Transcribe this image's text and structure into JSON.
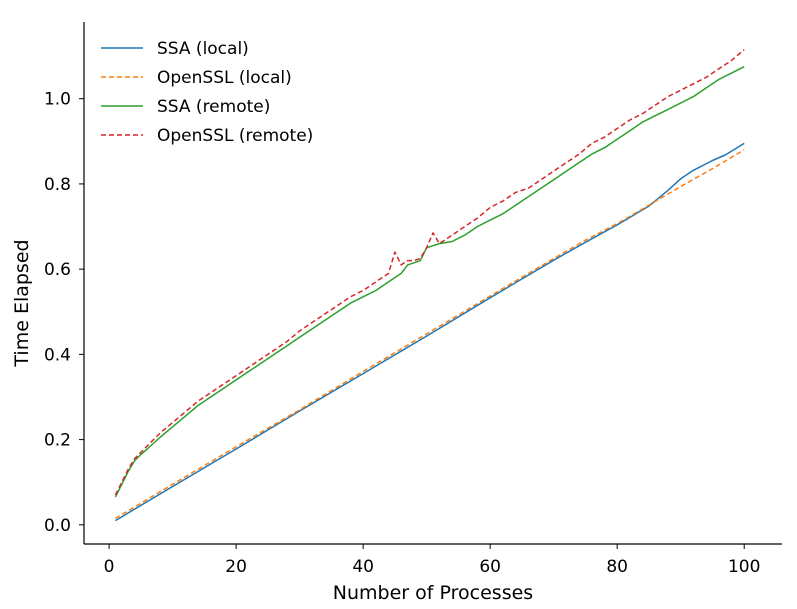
{
  "chart_data": {
    "type": "line",
    "title": "",
    "xlabel": "Number of Processes",
    "ylabel": "Time Elapsed",
    "xlim": [
      -3.95,
      105.95
    ],
    "ylim": [
      -0.045,
      1.18
    ],
    "xticks": [
      0,
      20,
      40,
      60,
      80,
      100
    ],
    "xtick_labels": [
      "0",
      "20",
      "40",
      "60",
      "80",
      "100"
    ],
    "yticks": [
      0.0,
      0.2,
      0.4,
      0.6,
      0.8,
      1.0
    ],
    "ytick_labels": [
      "0.0",
      "0.2",
      "0.4",
      "0.6",
      "0.8",
      "1.0"
    ],
    "grid": false,
    "legend_position": "top-left",
    "series": [
      {
        "name": "SSA (local)",
        "color": "#1f77b4",
        "dash": "solid",
        "x": [
          1,
          10,
          20,
          30,
          40,
          50,
          60,
          70,
          75,
          80,
          85,
          88,
          90,
          92,
          95,
          97,
          100
        ],
        "y": [
          0.01,
          0.09,
          0.178,
          0.267,
          0.355,
          0.443,
          0.533,
          0.621,
          0.663,
          0.704,
          0.748,
          0.785,
          0.812,
          0.832,
          0.855,
          0.868,
          0.895
        ]
      },
      {
        "name": "OpenSSL (local)",
        "color": "#ff7f0e",
        "dash": "dashed",
        "x": [
          1,
          10,
          20,
          30,
          40,
          50,
          60,
          70,
          75,
          80,
          85,
          90,
          95,
          100
        ],
        "y": [
          0.015,
          0.095,
          0.183,
          0.27,
          0.36,
          0.448,
          0.537,
          0.625,
          0.668,
          0.707,
          0.75,
          0.794,
          0.836,
          0.88
        ]
      },
      {
        "name": "SSA (remote)",
        "color": "#2ca02c",
        "dash": "solid",
        "x": [
          1,
          2,
          3,
          4,
          5,
          6,
          8,
          10,
          12,
          14,
          16,
          18,
          20,
          22,
          24,
          26,
          28,
          30,
          32,
          34,
          36,
          38,
          40,
          42,
          44,
          46,
          47,
          48,
          49,
          50,
          51,
          52,
          54,
          56,
          58,
          60,
          62,
          64,
          66,
          68,
          70,
          72,
          74,
          76,
          78,
          80,
          82,
          84,
          86,
          88,
          90,
          92,
          94,
          96,
          98,
          100
        ],
        "y": [
          0.065,
          0.095,
          0.125,
          0.15,
          0.165,
          0.178,
          0.205,
          0.23,
          0.255,
          0.28,
          0.3,
          0.32,
          0.34,
          0.36,
          0.38,
          0.4,
          0.42,
          0.44,
          0.46,
          0.48,
          0.5,
          0.52,
          0.535,
          0.55,
          0.57,
          0.59,
          0.61,
          0.615,
          0.62,
          0.65,
          0.655,
          0.66,
          0.665,
          0.68,
          0.7,
          0.715,
          0.73,
          0.75,
          0.77,
          0.79,
          0.81,
          0.83,
          0.85,
          0.87,
          0.885,
          0.905,
          0.925,
          0.945,
          0.96,
          0.975,
          0.99,
          1.005,
          1.025,
          1.045,
          1.06,
          1.075
        ]
      },
      {
        "name": "OpenSSL (remote)",
        "color": "#d62728",
        "dash": "dashed",
        "x": [
          1,
          2,
          3,
          4,
          5,
          6,
          8,
          10,
          12,
          14,
          16,
          18,
          20,
          22,
          24,
          26,
          28,
          30,
          32,
          34,
          36,
          38,
          40,
          42,
          44,
          45,
          46,
          47,
          48,
          49,
          50,
          51,
          52,
          54,
          56,
          58,
          60,
          62,
          64,
          66,
          68,
          70,
          72,
          74,
          76,
          78,
          80,
          82,
          84,
          86,
          88,
          90,
          92,
          94,
          96,
          98,
          100
        ],
        "y": [
          0.07,
          0.1,
          0.13,
          0.155,
          0.17,
          0.185,
          0.215,
          0.24,
          0.265,
          0.29,
          0.31,
          0.33,
          0.35,
          0.37,
          0.39,
          0.41,
          0.43,
          0.455,
          0.475,
          0.495,
          0.515,
          0.535,
          0.55,
          0.57,
          0.59,
          0.64,
          0.61,
          0.62,
          0.62,
          0.625,
          0.65,
          0.685,
          0.66,
          0.68,
          0.7,
          0.72,
          0.745,
          0.76,
          0.78,
          0.79,
          0.81,
          0.83,
          0.85,
          0.87,
          0.895,
          0.91,
          0.93,
          0.95,
          0.965,
          0.985,
          1.005,
          1.02,
          1.035,
          1.05,
          1.07,
          1.09,
          1.115
        ]
      }
    ]
  }
}
